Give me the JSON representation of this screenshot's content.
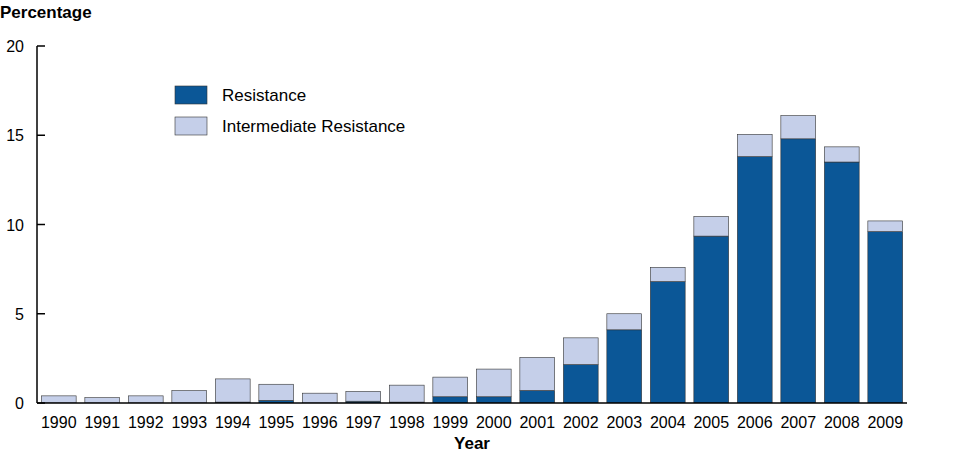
{
  "chart_data": {
    "type": "bar",
    "stacked": true,
    "grid": false,
    "legend": "upper left",
    "y_label": "Percentage",
    "x_label": "Year",
    "categories": [
      "1990",
      "1991",
      "1992",
      "1993",
      "1994",
      "1995",
      "1996",
      "1997",
      "1998",
      "1999",
      "2000",
      "2001",
      "2002",
      "2003",
      "2004",
      "2005",
      "2006",
      "2007",
      "2008",
      "2009"
    ],
    "series": [
      {
        "name": "Resistance",
        "color": "#0b5797",
        "values": [
          0,
          0,
          0,
          0,
          0.05,
          0.15,
          0,
          0.1,
          0.05,
          0.35,
          0.35,
          0.7,
          2.15,
          4.1,
          6.8,
          9.35,
          13.8,
          14.8,
          13.5,
          9.6
        ]
      },
      {
        "name": "Intermediate Resistance",
        "color": "#c5cfe9",
        "values": [
          0.4,
          0.3,
          0.4,
          0.7,
          1.3,
          0.9,
          0.55,
          0.55,
          0.95,
          1.1,
          1.55,
          1.85,
          1.5,
          0.9,
          0.8,
          1.1,
          1.25,
          1.3,
          0.85,
          0.6
        ]
      }
    ],
    "ylim": [
      0,
      20
    ],
    "yticks": [
      0,
      5,
      10,
      15,
      20
    ]
  }
}
